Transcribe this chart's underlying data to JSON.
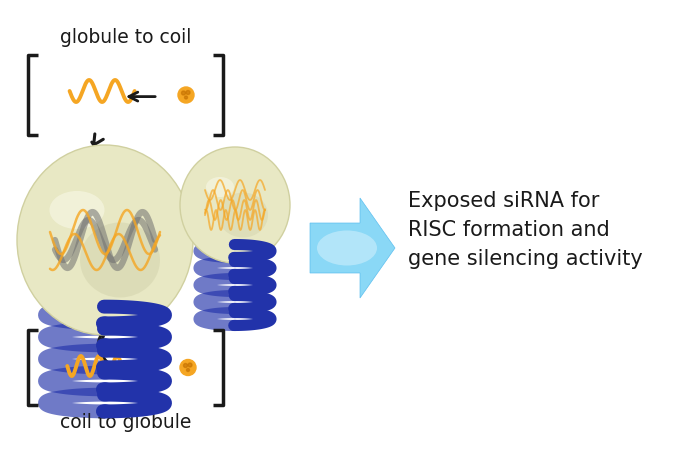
{
  "background_color": "#ffffff",
  "text_globule_to_coil": "globule to coil",
  "text_coil_to_globule": "coil to globule",
  "text_exposed": "Exposed siRNA for\nRISC formation and\ngene silencing activity",
  "text_color": "#1a1a1a",
  "orange_color": "#f5a623",
  "blue_coil_color": "#2233aa",
  "arrow_blue_color": "#5bbfea",
  "bracket_color": "#111111",
  "figwidth": 6.9,
  "figheight": 4.5,
  "dpi": 100
}
